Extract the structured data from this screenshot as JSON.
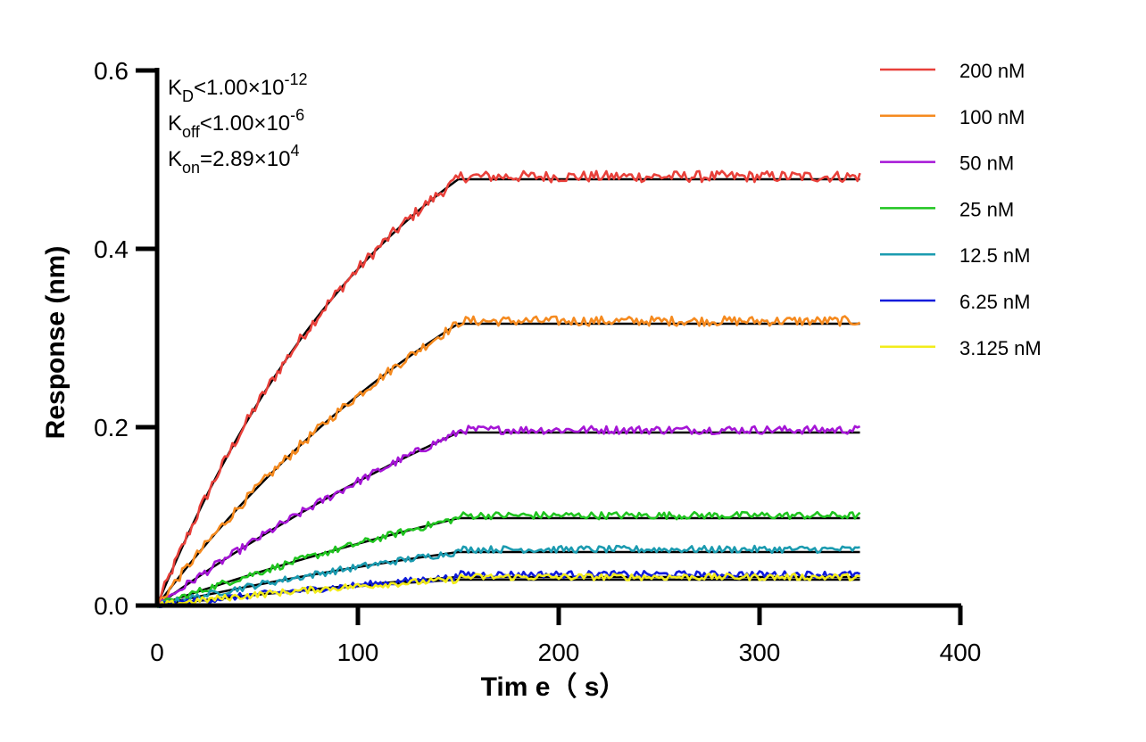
{
  "chart_data": {
    "type": "line",
    "xlabel": "Tim e（ s）",
    "ylabel": "Response (nm)",
    "xlim": [
      0,
      400
    ],
    "ylim": [
      0,
      0.6
    ],
    "x_ticks": [
      "0",
      "100",
      "200",
      "300",
      "400"
    ],
    "y_ticks": [
      "0.0",
      "0.2",
      "0.4",
      "0.6"
    ],
    "grid": false,
    "legend_position": "top-right",
    "association_end": 150,
    "time_end": 350,
    "annotations": [
      {
        "base": "K",
        "sub": "D",
        "text": "<1.00×10",
        "sup": "-12"
      },
      {
        "base": "K",
        "sub": "off",
        "text": "<1.00×10",
        "sup": "-6"
      },
      {
        "base": "K",
        "sub": "on",
        "text": "=2.89×10",
        "sup": "4"
      }
    ],
    "series": [
      {
        "name": "200 nM",
        "color": "#e8403a",
        "plateau": 0.478,
        "k": 0.0081
      },
      {
        "name": "100 nM",
        "color": "#f58a1f",
        "plateau": 0.316,
        "k": 0.005
      },
      {
        "name": "50 nM",
        "color": "#a515d6",
        "plateau": 0.194,
        "k": 0.0031
      },
      {
        "name": "25 nM",
        "color": "#1fc41f",
        "plateau": 0.098,
        "k": 0.0025
      },
      {
        "name": "12.5 nM",
        "color": "#1b9bb0",
        "plateau": 0.06,
        "k": 0.0032
      },
      {
        "name": "6.25 nM",
        "color": "#0d1adb",
        "plateau": 0.032,
        "k": 0.0028
      },
      {
        "name": "3.125 nM",
        "color": "#f2ec1a",
        "plateau": 0.029,
        "k": 0.0052
      }
    ],
    "fit_color": "#000000"
  }
}
